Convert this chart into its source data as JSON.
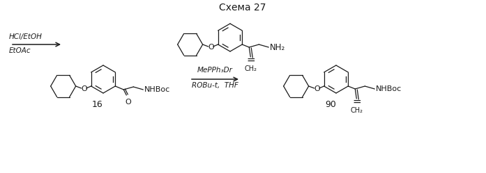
{
  "title": "Схема 27",
  "bg_color": "#ffffff",
  "line_color": "#1a1a1a",
  "title_fontsize": 10,
  "arrow1_label_top": "MePPh₃Dr",
  "arrow1_label_bot": "ROBu-t,  THF",
  "arrow2_label_top": "HCl/EtOH",
  "arrow2_label_bot": "EtOAc",
  "compound16_label": "16",
  "compound90_label": "90",
  "nhboc_label": "NHBoc",
  "nhboc2_label": "NHBoc",
  "nh2_label": "NH₂"
}
